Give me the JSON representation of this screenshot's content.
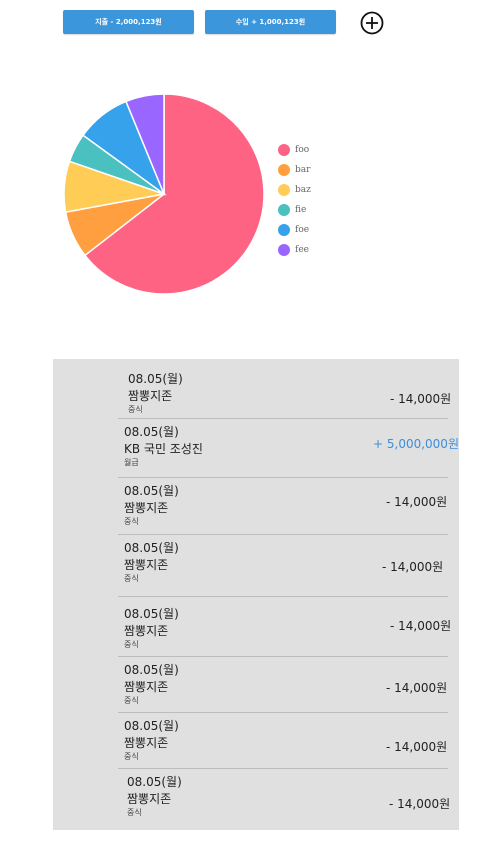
{
  "header": {
    "expense_label": "지출 - 2,000,123원",
    "income_label": "수입 + 1,000,123원",
    "add_icon": "plus-circle-icon"
  },
  "chart_data": {
    "type": "pie",
    "series": [
      {
        "name": "foo",
        "value": 64.5,
        "color": "#ff6384"
      },
      {
        "name": "bar",
        "value": 7.6,
        "color": "#ff9f40"
      },
      {
        "name": "baz",
        "value": 8.2,
        "color": "#ffcd56"
      },
      {
        "name": "fie",
        "value": 4.7,
        "color": "#4bc0c0"
      },
      {
        "name": "foe",
        "value": 8.8,
        "color": "#36a2eb"
      },
      {
        "name": "fee",
        "value": 6.2,
        "color": "#9966ff"
      }
    ],
    "legend_position": "right"
  },
  "transactions": [
    {
      "date": "08.05(월)",
      "name": "짬뽕지존",
      "category": "중식",
      "amount": "- 14,000원",
      "type": "expense"
    },
    {
      "date": "08.05(월)",
      "name": "KB 국민 조성진",
      "category": "월급",
      "amount": "+ 5,000,000원",
      "type": "income"
    },
    {
      "date": "08.05(월)",
      "name": "짬뽕지존",
      "category": "중식",
      "amount": "- 14,000원",
      "type": "expense"
    },
    {
      "date": "08.05(월)",
      "name": "짬뽕지존",
      "category": "중식",
      "amount": "- 14,000원",
      "type": "expense"
    },
    {
      "date": "08.05(월)",
      "name": "짬뽕지존",
      "category": "중식",
      "amount": "- 14,000원",
      "type": "expense"
    },
    {
      "date": "08.05(월)",
      "name": "짬뽕지존",
      "category": "중식",
      "amount": "- 14,000원",
      "type": "expense"
    },
    {
      "date": "08.05(월)",
      "name": "짬뽕지존",
      "category": "중식",
      "amount": "- 14,000원",
      "type": "expense"
    },
    {
      "date": "08.05(월)",
      "name": "짬뽕지존",
      "category": "중식",
      "amount": "- 14,000원",
      "type": "expense"
    }
  ]
}
